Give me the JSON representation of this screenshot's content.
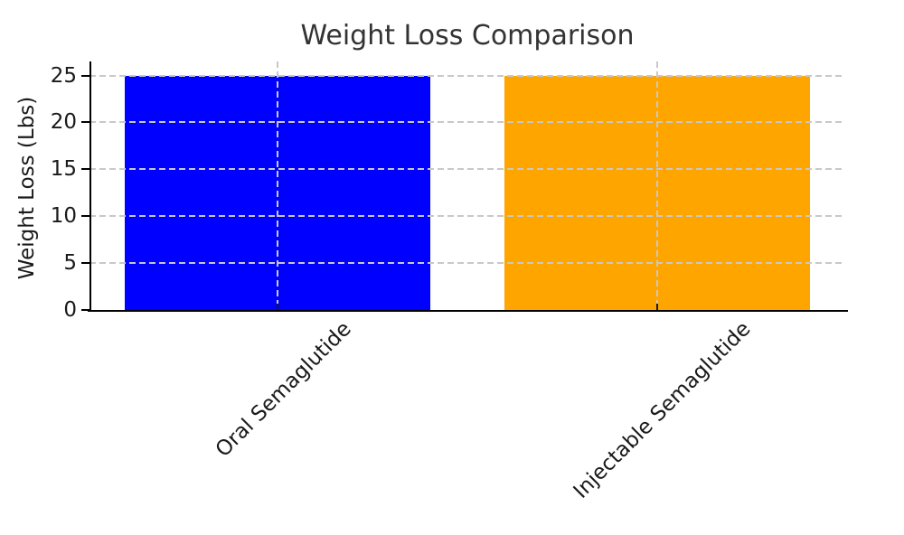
{
  "chart_data": {
    "type": "bar",
    "title": "Weight Loss Comparison",
    "xlabel": "",
    "ylabel": "Weight Loss (Lbs)",
    "categories": [
      "Oral Semaglutide",
      "Injectable Semaglutide"
    ],
    "values": [
      25,
      25
    ],
    "bar_colors": [
      "#0000ff",
      "#ffa500"
    ],
    "yticks": [
      0,
      5,
      10,
      15,
      20,
      25
    ],
    "ylim": [
      0,
      26.5
    ],
    "grid": true,
    "grid_style": "dashed",
    "x_tick_label_rotation_deg": 45,
    "legend": "none"
  },
  "colors": {
    "background": "#ffffff",
    "grid_color": "#c8c8c8",
    "axis_color": "#000000",
    "tick_label_color": "#1a1a1a",
    "title_color": "#333333"
  }
}
